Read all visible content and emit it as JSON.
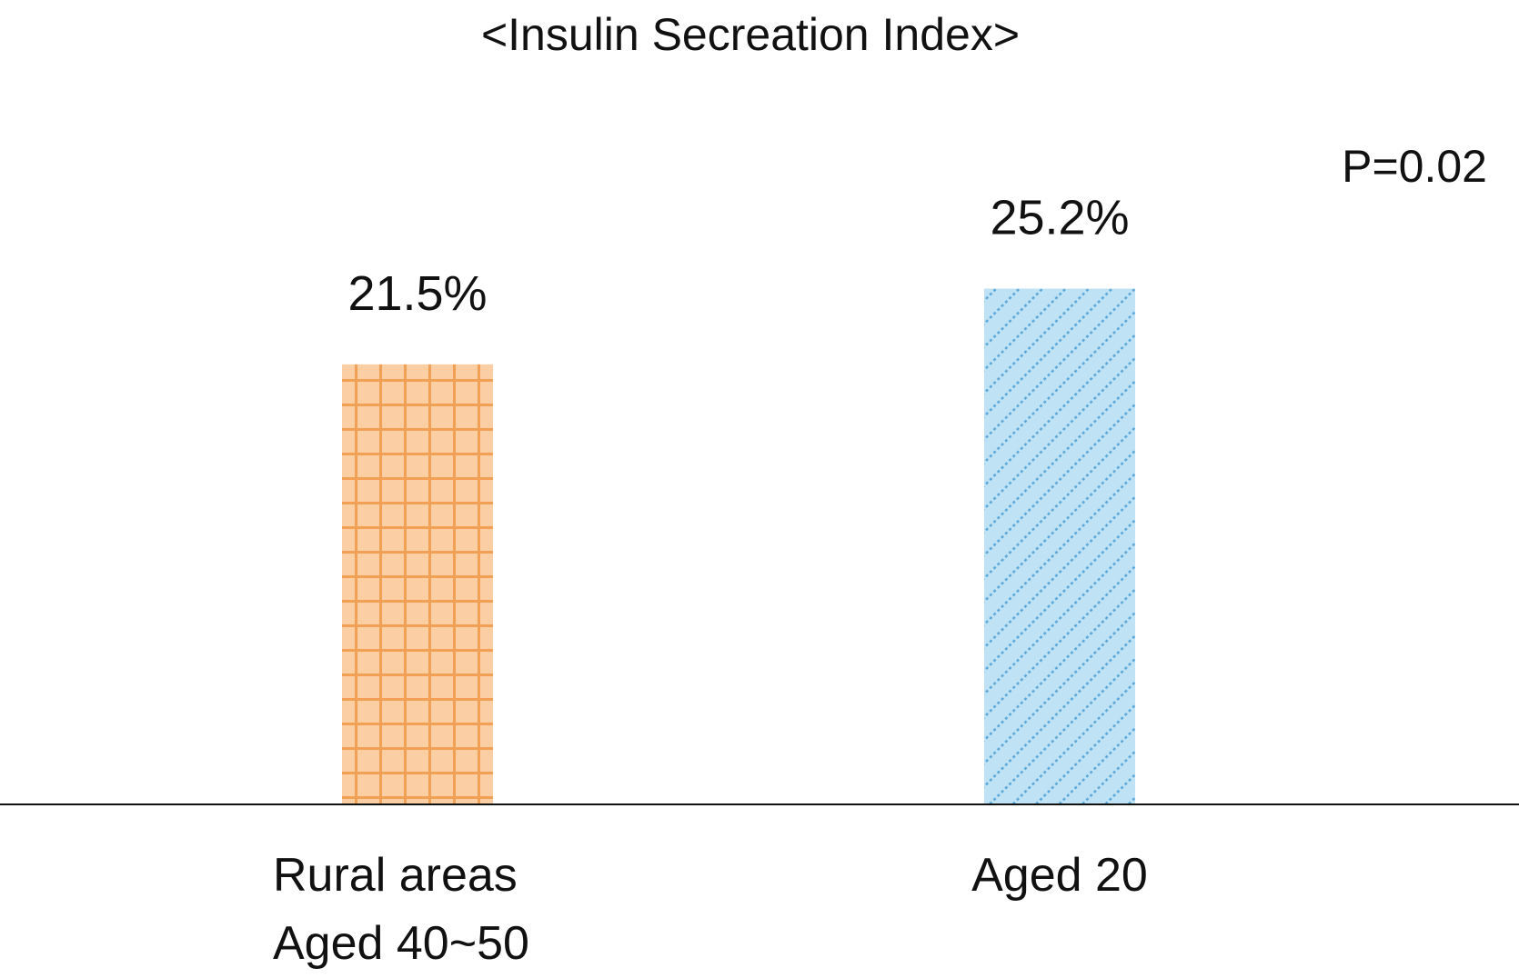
{
  "chart_data": {
    "type": "bar",
    "title": "<Insulin Secreation Index>",
    "annotation": "P=0.02",
    "categories": [
      [
        "Rural areas",
        "Aged 40~50"
      ],
      [
        "Aged 20"
      ]
    ],
    "values": [
      21.5,
      25.2
    ],
    "data_labels": [
      "21.5%",
      "25.2%"
    ],
    "unit": "%",
    "ylim": [
      0,
      39.3
    ],
    "grid": false,
    "legend": "none",
    "colors": {
      "bar_1_fill": "#fbcfa3",
      "bar_1_pattern": "#f2a055",
      "bar_2_fill": "#bfe3f5",
      "bar_2_pattern": "#5aa6d8",
      "axis": "#111111"
    }
  }
}
